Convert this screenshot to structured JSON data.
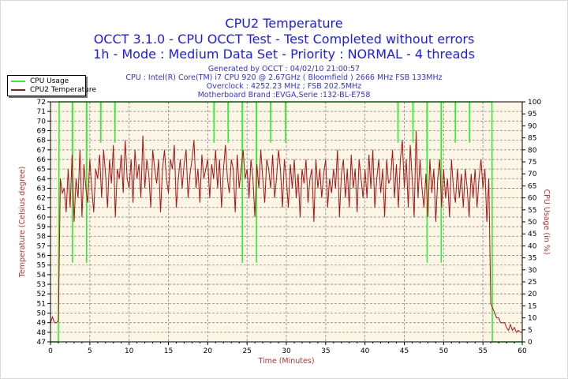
{
  "header": {
    "title": "CPU2 Temperature",
    "line2": "OCCT 3.1.0 - CPU OCCT Test - Test Completed without errors",
    "line3": "1h - Mode : Medium Data Set - Priority : NORMAL - 4 threads",
    "generated": "Generated by OCCT : 04/02/10 21:00:57",
    "cpu": "CPU : Intel(R) Core(TM) i7 CPU 920 @ 2.67GHz ( Bloomfield ) 2666 MHz FSB 133MHz",
    "overclock": "Overclock : 4252.23 MHz ; FSB 202.5MHz",
    "motherboard": "Motherboard Brand :EVGA,Serie :132-BL-E758"
  },
  "legend": {
    "cpu_usage": "CPU Usage",
    "cpu2_temp": "CPU2 Temperature",
    "placement": "top-left"
  },
  "colors": {
    "cpu_usage": "#33ee33",
    "temperature": "#aa1111",
    "plot_bg": "#fdf5e6",
    "title": "#1a1aff",
    "axis_label": "#c03030"
  },
  "chart_data": {
    "type": "line",
    "title": "CPU2 Temperature",
    "xlabel": "Time (Minutes)",
    "ylabel": "Temperature (Celsius degree)",
    "y2label": "CPU Usage (in %)",
    "xlim": [
      0,
      60
    ],
    "ylim": [
      47,
      72
    ],
    "y2lim": [
      0,
      100
    ],
    "grid": true,
    "xticks": [
      "0",
      "5",
      "10",
      "15",
      "20",
      "25",
      "30",
      "35",
      "40",
      "45",
      "50",
      "55",
      "60"
    ],
    "yticks": [
      "47",
      "48",
      "49",
      "50",
      "51",
      "52",
      "53",
      "54",
      "55",
      "56",
      "57",
      "58",
      "59",
      "60",
      "61",
      "62",
      "63",
      "64",
      "65",
      "66",
      "67",
      "68",
      "69",
      "70",
      "71",
      "72"
    ],
    "y2ticks": [
      "0",
      "5",
      "10",
      "15",
      "20",
      "25",
      "30",
      "35",
      "40",
      "45",
      "50",
      "55",
      "60",
      "65",
      "70",
      "75",
      "80",
      "85",
      "90",
      "95",
      "100"
    ],
    "series": [
      {
        "name": "CPU2 Temperature",
        "axis": "left",
        "x_step": 0.25,
        "values": [
          49,
          49.6,
          49,
          49,
          49.2,
          64,
          62.5,
          63,
          60.5,
          65,
          61,
          66.5,
          59.5,
          64,
          62,
          67,
          60,
          65.5,
          63,
          61.5,
          66,
          63,
          60.5,
          65,
          64,
          66.5,
          62,
          67,
          64.5,
          61,
          66,
          63.5,
          67.5,
          60,
          65,
          64,
          66.5,
          62.5,
          68,
          64,
          63,
          66,
          61.5,
          67,
          64,
          65.5,
          62,
          68.5,
          63,
          66,
          64.5,
          61,
          67,
          65,
          63.5,
          66,
          60.5,
          65,
          67,
          64,
          62.5,
          66,
          65,
          67.5,
          61,
          64,
          66,
          63,
          65.5,
          67,
          62,
          64.5,
          66,
          68,
          63,
          65,
          61.5,
          66.5,
          64,
          65,
          66,
          62,
          65.5,
          64,
          67,
          63,
          66,
          61,
          65,
          67.5,
          64,
          62.5,
          66,
          65,
          60.5,
          66.5,
          63,
          65,
          67,
          64,
          65,
          62,
          66,
          64,
          60,
          65.5,
          63,
          67,
          64,
          61.5,
          66,
          65,
          63,
          66.5,
          62,
          64,
          67,
          65,
          61,
          66,
          64,
          61,
          65.5,
          63,
          66,
          62,
          64.5,
          60,
          65,
          63.5,
          66,
          61.5,
          64,
          65,
          59.5,
          66,
          63,
          65,
          62,
          64.5,
          66,
          61,
          64,
          62.5,
          65,
          63,
          67,
          60,
          64.5,
          66,
          62,
          65,
          61,
          66.5,
          63,
          65,
          60.5,
          66,
          64,
          62,
          65,
          62,
          66.5,
          63,
          67,
          61,
          64,
          66,
          62.5,
          65,
          60,
          66,
          63.5,
          64,
          67,
          62,
          65.5,
          61,
          66,
          68,
          63,
          66,
          61,
          67.5,
          64,
          60,
          69,
          62,
          66,
          63,
          61,
          64.5,
          60,
          66,
          62.5,
          65,
          59.5,
          64,
          66,
          61,
          65,
          62,
          64,
          60,
          66,
          63,
          61.5,
          65,
          62,
          64.5,
          61,
          65,
          63,
          60,
          64.5,
          62,
          65,
          61,
          64,
          66,
          63,
          65,
          59.5,
          64,
          51,
          50.5,
          50,
          49.5,
          49.5,
          49,
          49,
          49,
          48.5,
          48.2,
          48.8,
          48.2,
          48.5,
          48,
          48.2,
          48,
          48
        ]
      },
      {
        "name": "CPU Usage",
        "axis": "right",
        "x": [
          0,
          1.0,
          1.1,
          2.78,
          2.8,
          2.82,
          4.58,
          4.6,
          4.62,
          6.38,
          6.4,
          6.42,
          8.18,
          8.2,
          8.22,
          20.78,
          20.8,
          20.82,
          22.58,
          22.6,
          22.62,
          24.38,
          24.4,
          24.42,
          26.18,
          26.2,
          26.22,
          27.98,
          28,
          28.02,
          29.88,
          29.9,
          29.92,
          44.18,
          44.2,
          44.22,
          46.08,
          46.1,
          46.12,
          47.88,
          47.9,
          47.92,
          49.68,
          49.7,
          49.72,
          51.48,
          51.5,
          51.52,
          53.28,
          53.3,
          53.32,
          56.15,
          56.2,
          60
        ],
        "values": [
          0,
          0,
          100,
          100,
          33,
          100,
          100,
          33,
          100,
          100,
          83,
          100,
          100,
          83,
          100,
          100,
          83,
          100,
          100,
          83,
          100,
          100,
          33,
          100,
          100,
          33,
          100,
          100,
          83,
          100,
          100,
          83,
          100,
          100,
          83,
          100,
          100,
          83,
          100,
          100,
          33,
          100,
          100,
          33,
          100,
          100,
          83,
          100,
          100,
          83,
          100,
          100,
          0,
          0
        ]
      }
    ]
  }
}
